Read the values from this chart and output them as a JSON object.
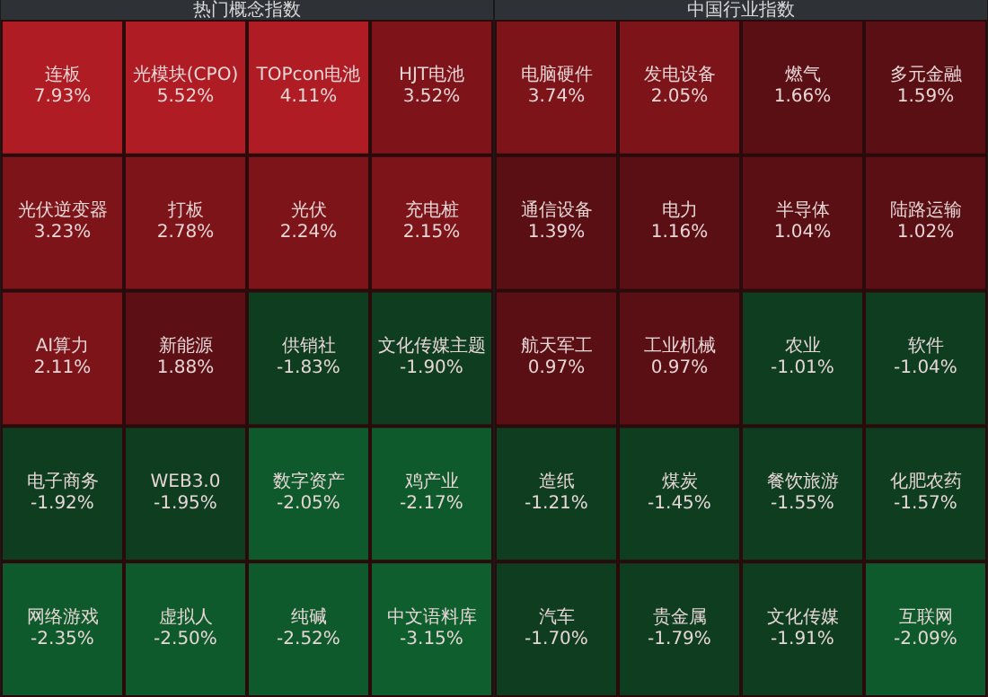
{
  "chart_data": [
    {
      "type": "other",
      "title": "热门概念指数",
      "categories": [
        "连板",
        "光模块(CPO)",
        "TOPcon电池",
        "HJT电池",
        "光伏逆变器",
        "打板",
        "光伏",
        "充电桩",
        "AI算力",
        "新能源",
        "供销社",
        "文化传媒主题",
        "电子商务",
        "WEB3.0",
        "数字资产",
        "鸡产业",
        "网络游戏",
        "虚拟人",
        "纯碱",
        "中文语料库"
      ],
      "values": [
        7.93,
        5.52,
        4.11,
        3.52,
        3.23,
        2.78,
        2.24,
        2.15,
        2.11,
        1.88,
        -1.83,
        -1.9,
        -1.92,
        -1.95,
        -2.05,
        -2.17,
        -2.35,
        -2.5,
        -2.52,
        -3.15
      ],
      "value_labels": [
        "7.93%",
        "5.52%",
        "4.11%",
        "3.52%",
        "3.23%",
        "2.78%",
        "2.24%",
        "2.15%",
        "2.11%",
        "1.88%",
        "-1.83%",
        "-1.90%",
        "-1.92%",
        "-1.95%",
        "-2.05%",
        "-2.17%",
        "-2.35%",
        "-2.50%",
        "-2.52%",
        "-3.15%"
      ],
      "colors": [
        "#b01c24",
        "#b01c24",
        "#b01c24",
        "#7e1419",
        "#7c1419",
        "#7c1419",
        "#7c1419",
        "#7c1419",
        "#7c1419",
        "#5c0f14",
        "#0f3d20",
        "#0f3d20",
        "#0f3d20",
        "#0f3d20",
        "#0f5a2c",
        "#0f5a2c",
        "#0f5a2c",
        "#0f5a2c",
        "#0f5a2c",
        "#0f5e2e"
      ]
    },
    {
      "type": "other",
      "title": "中国行业指数",
      "categories": [
        "电脑硬件",
        "发电设备",
        "燃气",
        "多元金融",
        "通信设备",
        "电力",
        "半导体",
        "陆路运输",
        "航天军工",
        "工业机械",
        "农业",
        "软件",
        "造纸",
        "煤炭",
        "餐饮旅游",
        "化肥农药",
        "汽车",
        "贵金属",
        "文化传媒",
        "互联网"
      ],
      "values": [
        3.74,
        2.05,
        1.66,
        1.59,
        1.39,
        1.16,
        1.04,
        1.02,
        0.97,
        0.97,
        -1.01,
        -1.04,
        -1.21,
        -1.45,
        -1.55,
        -1.57,
        -1.7,
        -1.79,
        -1.91,
        -2.09
      ],
      "value_labels": [
        "3.74%",
        "2.05%",
        "1.66%",
        "1.59%",
        "1.39%",
        "1.16%",
        "1.04%",
        "1.02%",
        "0.97%",
        "0.97%",
        "-1.01%",
        "-1.04%",
        "-1.21%",
        "-1.45%",
        "-1.55%",
        "-1.57%",
        "-1.70%",
        "-1.79%",
        "-1.91%",
        "-2.09%"
      ],
      "colors": [
        "#7c1419",
        "#7c1419",
        "#5a0f14",
        "#5a0f14",
        "#5a0f14",
        "#5a0f14",
        "#5a0f14",
        "#5a0f14",
        "#5a0f14",
        "#5a0f14",
        "#0f3d20",
        "#0f3d20",
        "#0f3d20",
        "#0f3d20",
        "#0f3d20",
        "#0f3d20",
        "#0f3d20",
        "#0f3d20",
        "#0f3d20",
        "#0f5a2c"
      ]
    }
  ]
}
